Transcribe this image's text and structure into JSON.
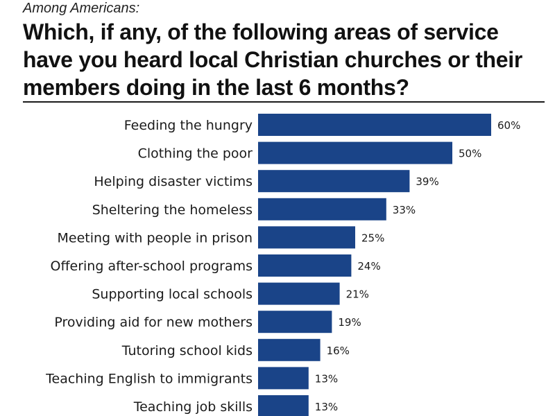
{
  "header": {
    "subtitle": "Among Americans:",
    "title": "Which, if any, of the following areas of service have you heard local Christian churches or their members doing in the last 6 months?"
  },
  "colors": {
    "bar": "#1a4488",
    "text": "#1a1a1a",
    "rule": "#1a1a1a"
  },
  "chart_data": {
    "type": "bar",
    "orientation": "horizontal",
    "categories": [
      "Feeding the hungry",
      "Clothing the poor",
      "Helping disaster victims",
      "Sheltering the homeless",
      "Meeting with people in prison",
      "Offering after-school programs",
      "Supporting local schools",
      "Providing aid for new mothers",
      "Tutoring school kids",
      "Teaching English to immigrants",
      "Teaching job skills"
    ],
    "values": [
      60,
      50,
      39,
      33,
      25,
      24,
      21,
      19,
      16,
      13,
      13
    ],
    "value_labels": [
      "60%",
      "50%",
      "39%",
      "33%",
      "25%",
      "24%",
      "21%",
      "19%",
      "16%",
      "13%",
      "13%"
    ],
    "xlim": [
      0,
      100
    ],
    "grid": false,
    "legend": "none"
  }
}
